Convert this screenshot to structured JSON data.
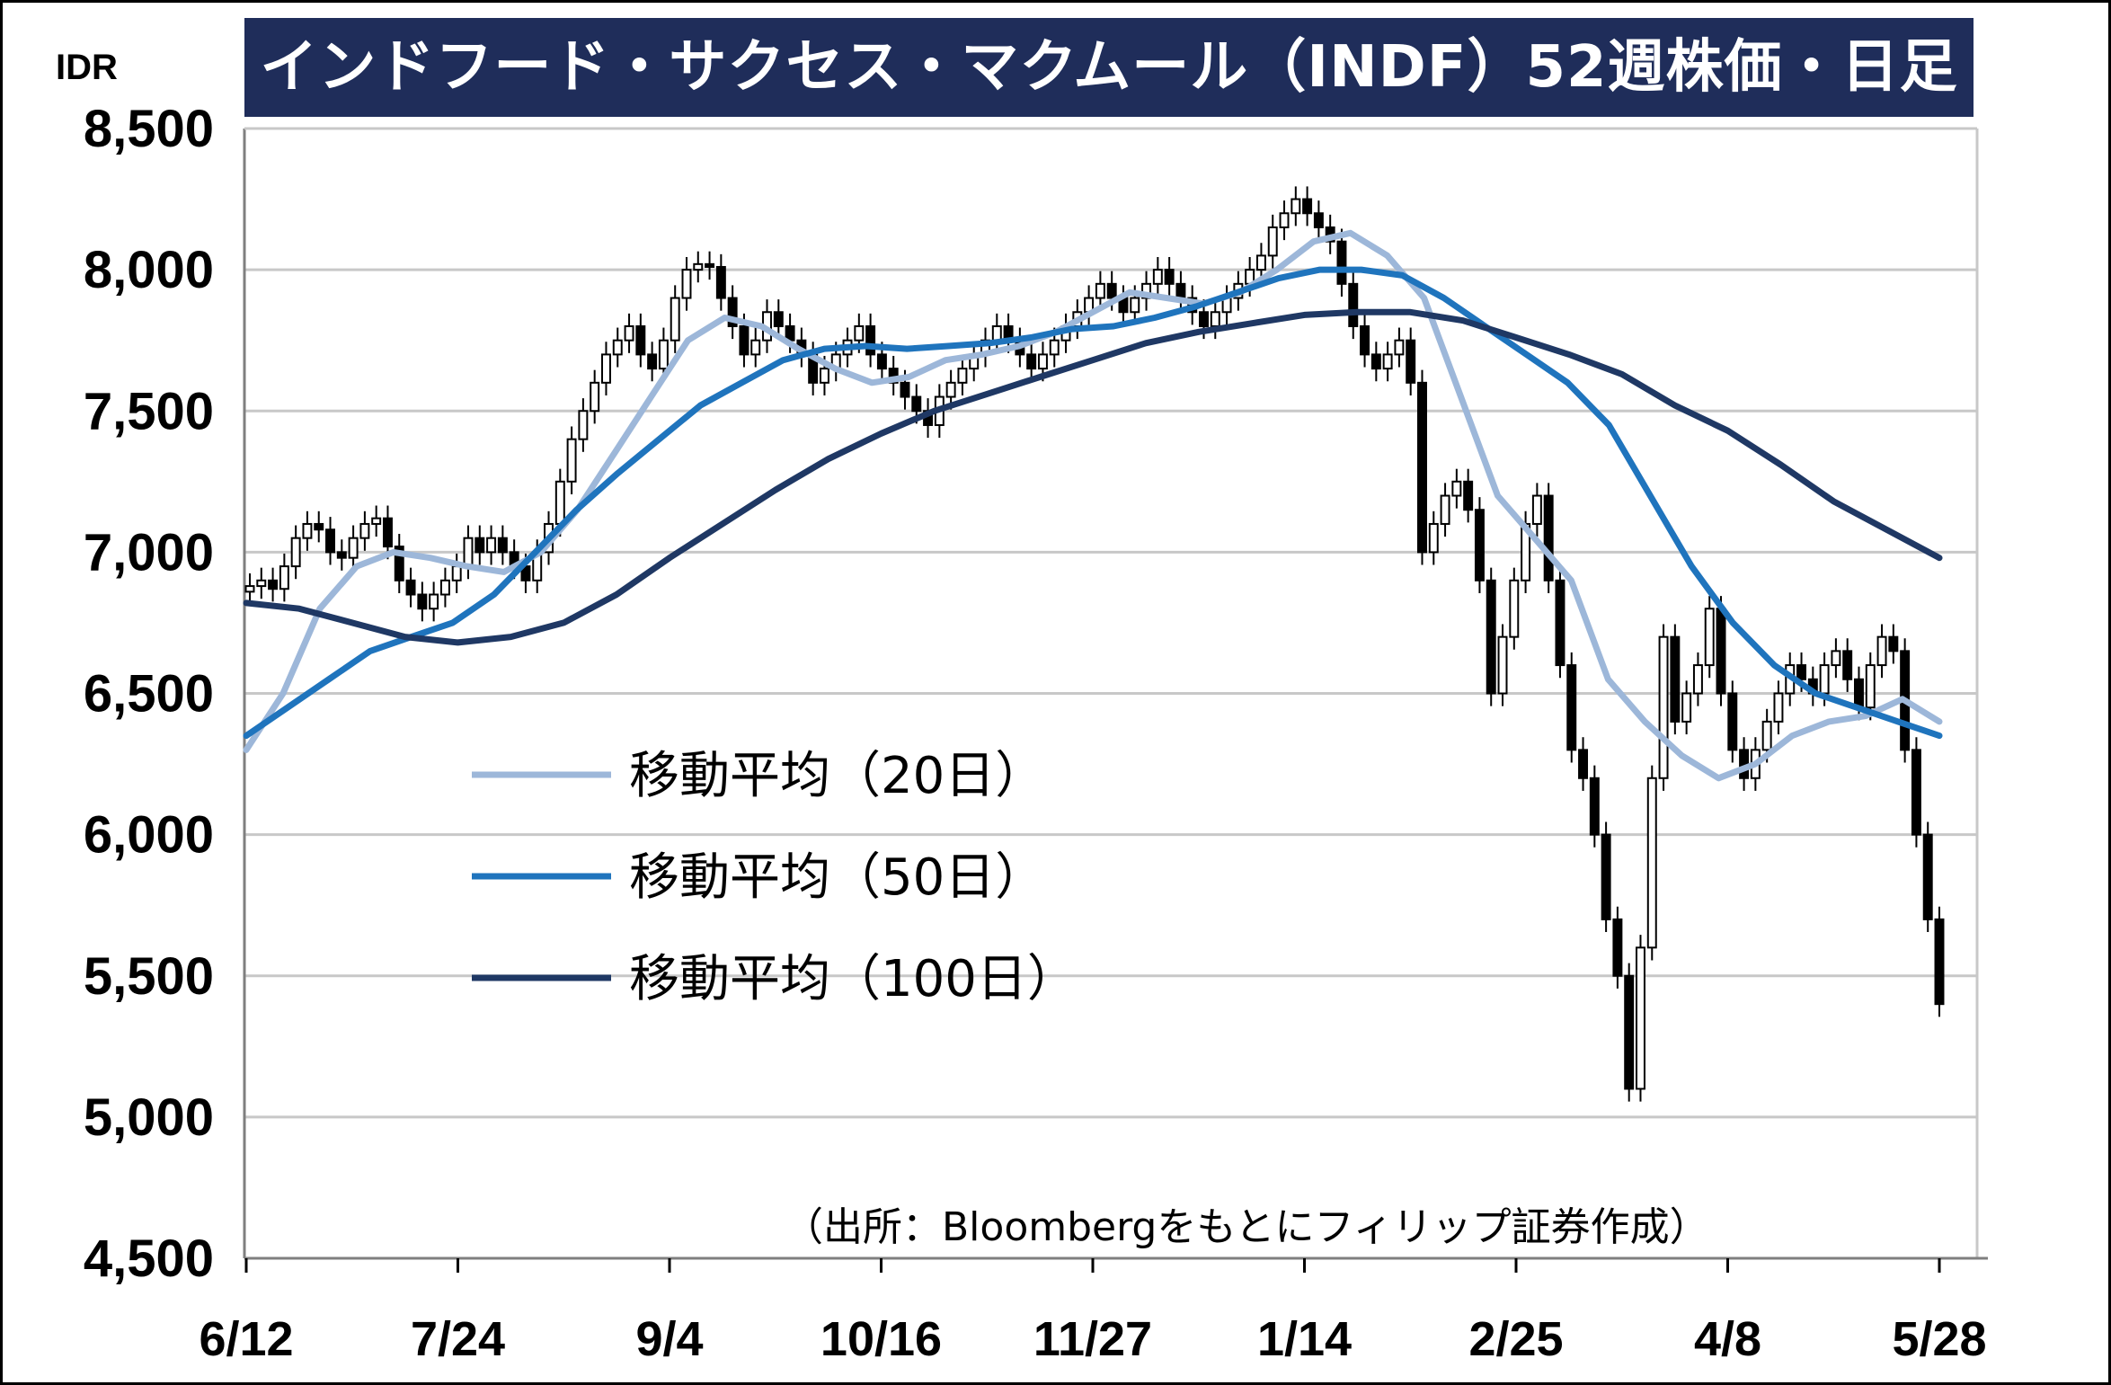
{
  "title": "インドフード・サクセス・マクムール（INDF）52週株価・日足",
  "source": "（出所：Bloombergをもとにフィリップ証券作成）",
  "colors": {
    "title_bg": "#1f2d5a",
    "ma20": "#9db7d9",
    "ma50": "#1f74bd",
    "ma100": "#1f3864",
    "candle": "#000000",
    "grid": "#c8c8c8"
  },
  "chart_data": {
    "type": "candlestick",
    "unit_label": "IDR",
    "ylim": [
      4500,
      8500
    ],
    "y_ticks": [
      "8,500",
      "8,000",
      "7,500",
      "7,000",
      "6,500",
      "6,000",
      "5,500",
      "5,000",
      "4,500"
    ],
    "y_tick_values": [
      8500,
      8000,
      7500,
      7000,
      6500,
      6000,
      5500,
      5000,
      4500
    ],
    "x_ticks": [
      "6/12",
      "7/24",
      "9/4",
      "10/16",
      "11/27",
      "1/14",
      "2/25",
      "4/8",
      "5/28"
    ],
    "grid": true,
    "legend_position": "center-left",
    "candles_close": [
      6880,
      6900,
      6870,
      6950,
      7050,
      7100,
      7080,
      7000,
      6980,
      7050,
      7100,
      7120,
      7020,
      6900,
      6850,
      6800,
      6850,
      6900,
      6950,
      7050,
      7000,
      7050,
      7000,
      6950,
      6900,
      7000,
      7100,
      7250,
      7400,
      7500,
      7600,
      7700,
      7750,
      7800,
      7700,
      7650,
      7750,
      7900,
      8000,
      8020,
      8010,
      7900,
      7800,
      7700,
      7750,
      7850,
      7800,
      7750,
      7700,
      7600,
      7650,
      7700,
      7750,
      7800,
      7700,
      7650,
      7600,
      7550,
      7500,
      7450,
      7550,
      7600,
      7650,
      7700,
      7750,
      7800,
      7750,
      7700,
      7650,
      7700,
      7750,
      7800,
      7850,
      7900,
      7950,
      7900,
      7850,
      7900,
      7950,
      8000,
      7950,
      7900,
      7850,
      7800,
      7850,
      7900,
      7950,
      8000,
      8050,
      8150,
      8200,
      8250,
      8200,
      8150,
      8100,
      7950,
      7800,
      7700,
      7650,
      7700,
      7750,
      7600,
      7000,
      7100,
      7200,
      7250,
      7150,
      6900,
      6500,
      6700,
      6900,
      7100,
      7200,
      6900,
      6600,
      6300,
      6200,
      6000,
      5700,
      5500,
      5100,
      5600,
      6200,
      6700,
      6400,
      6500,
      6600,
      6800,
      6500,
      6300,
      6200,
      6300,
      6400,
      6500,
      6600,
      6550,
      6500,
      6600,
      6650,
      6550,
      6450,
      6600,
      6700,
      6650,
      6300,
      6000,
      5700,
      5400
    ],
    "series": [
      {
        "name": "移動平均（20日）",
        "values": [
          6300,
          6500,
          6800,
          6950,
          7000,
          6980,
          6950,
          6930,
          7000,
          7150,
          7350,
          7550,
          7750,
          7830,
          7800,
          7720,
          7650,
          7600,
          7620,
          7680,
          7700,
          7730,
          7780,
          7850,
          7920,
          7900,
          7880,
          7920,
          8000,
          8100,
          8130,
          8050,
          7900,
          7550,
          7200,
          7050,
          6900,
          6550,
          6400,
          6280,
          6200,
          6250,
          6350,
          6400,
          6420,
          6480,
          6400
        ]
      },
      {
        "name": "移動平均（50日）",
        "values": [
          6350,
          6450,
          6550,
          6650,
          6700,
          6750,
          6850,
          7000,
          7150,
          7280,
          7400,
          7520,
          7600,
          7680,
          7720,
          7730,
          7720,
          7730,
          7740,
          7760,
          7790,
          7800,
          7830,
          7870,
          7920,
          7970,
          8000,
          8000,
          7980,
          7900,
          7800,
          7700,
          7600,
          7450,
          7200,
          6950,
          6750,
          6600,
          6500,
          6450,
          6400,
          6350
        ]
      },
      {
        "name": "移動平均（100日）",
        "values": [
          6820,
          6800,
          6750,
          6700,
          6680,
          6700,
          6750,
          6850,
          6980,
          7100,
          7220,
          7330,
          7420,
          7500,
          7560,
          7620,
          7680,
          7740,
          7780,
          7810,
          7840,
          7850,
          7850,
          7820,
          7760,
          7700,
          7630,
          7520,
          7430,
          7310,
          7180,
          7080,
          6980
        ]
      }
    ]
  }
}
